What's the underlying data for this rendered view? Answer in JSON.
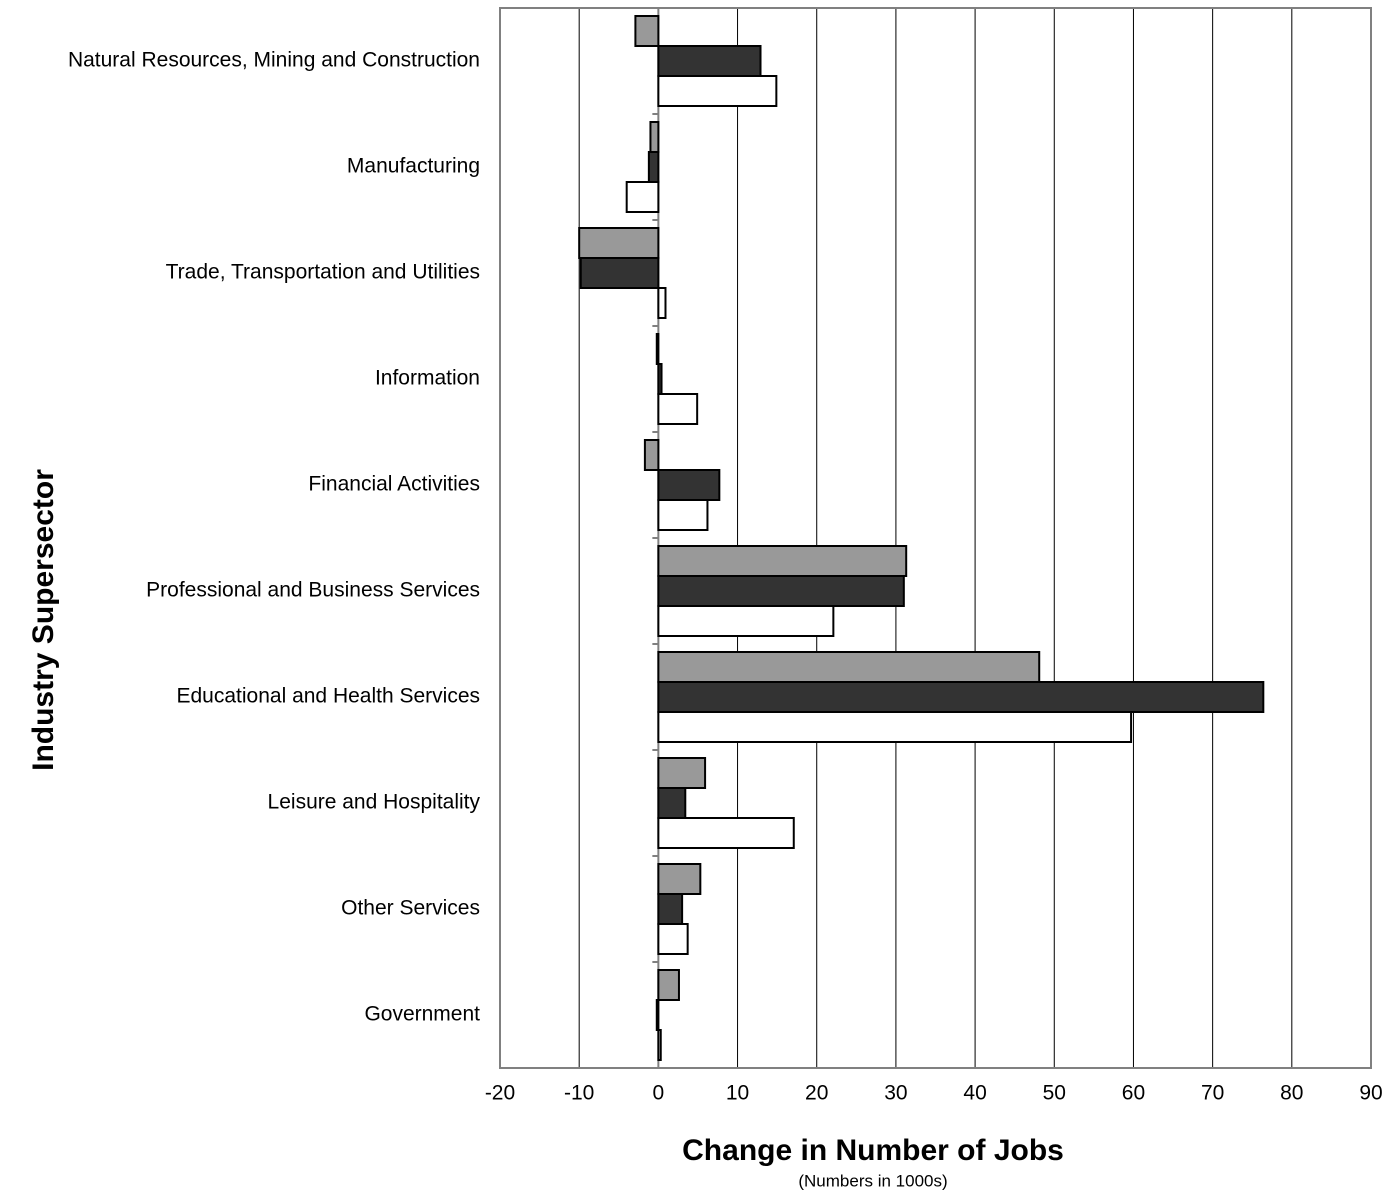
{
  "chart_data": {
    "type": "bar",
    "orientation": "horizontal",
    "x_label": "Change in Number of Jobs",
    "x_sublabel": "(Numbers in 1000s)",
    "y_label": "Industry Supersector",
    "categories": [
      "Natural Resources, Mining and Construction",
      "Manufacturing",
      "Trade, Transportation and Utilities",
      "Information",
      "Financial Activities",
      "Professional and Business Services",
      "Educational and Health Services",
      "Leisure and Hospitality",
      "Other Services",
      "Government"
    ],
    "series": [
      {
        "color": "#999999",
        "values": [
          -2.9,
          -1.0,
          -10.0,
          -0.2,
          -1.7,
          31.3,
          48.1,
          5.9,
          5.3,
          2.6
        ]
      },
      {
        "color": "#333333",
        "values": [
          12.9,
          -1.2,
          -9.8,
          0.4,
          7.7,
          31.0,
          76.4,
          3.4,
          3.0,
          -0.2
        ]
      },
      {
        "color": "#ffffff",
        "values": [
          14.9,
          -4.0,
          0.9,
          4.9,
          6.2,
          22.1,
          59.7,
          17.1,
          3.7,
          0.3
        ]
      }
    ],
    "xlim": [
      -20,
      90
    ],
    "xticks": [
      -20,
      -10,
      0,
      10,
      20,
      30,
      40,
      50,
      60,
      70,
      80,
      90
    ],
    "grid": true
  }
}
